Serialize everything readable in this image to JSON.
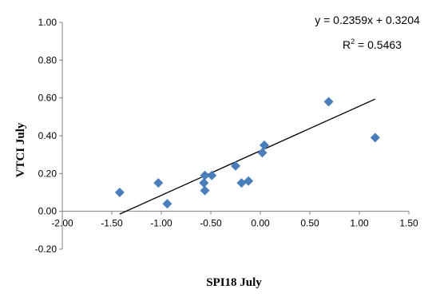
{
  "chart_data": {
    "type": "scatter",
    "title": "",
    "xlabel": "SPI18 July",
    "ylabel": "VTCI July",
    "xlim": [
      -2.0,
      1.5
    ],
    "ylim": [
      -0.2,
      1.0
    ],
    "x_ticks": [
      "-2.00",
      "-1.50",
      "-1.00",
      "-0.50",
      "0.00",
      "0.50",
      "1.00",
      "1.50"
    ],
    "y_ticks": [
      "-0.20",
      "0.00",
      "0.20",
      "0.40",
      "0.60",
      "0.80",
      "1.00"
    ],
    "x_tick_values": [
      -2.0,
      -1.5,
      -1.0,
      -0.5,
      0.0,
      0.5,
      1.0,
      1.5
    ],
    "y_tick_values": [
      -0.2,
      0.0,
      0.2,
      0.4,
      0.6,
      0.8,
      1.0
    ],
    "grid": false,
    "legend": "none",
    "marker": "diamond",
    "marker_color": "#4a7ebb",
    "series": [
      {
        "points": [
          {
            "x": -1.42,
            "y": 0.1
          },
          {
            "x": -1.03,
            "y": 0.15
          },
          {
            "x": -0.94,
            "y": 0.04
          },
          {
            "x": -0.56,
            "y": 0.19
          },
          {
            "x": -0.57,
            "y": 0.15
          },
          {
            "x": -0.56,
            "y": 0.11
          },
          {
            "x": -0.49,
            "y": 0.19
          },
          {
            "x": -0.25,
            "y": 0.24
          },
          {
            "x": -0.19,
            "y": 0.15
          },
          {
            "x": -0.12,
            "y": 0.16
          },
          {
            "x": 0.02,
            "y": 0.31
          },
          {
            "x": 0.04,
            "y": 0.35
          },
          {
            "x": 0.69,
            "y": 0.58
          },
          {
            "x": 1.16,
            "y": 0.39
          }
        ]
      }
    ],
    "trendline": {
      "slope": 0.2359,
      "intercept": 0.3204,
      "x_range": [
        -1.42,
        1.16
      ],
      "color": "#000000"
    },
    "annotations": {
      "equation": "y = 0.2359x + 0.3204",
      "r2_prefix": "R",
      "r2_sup": "2",
      "r2_suffix": " = 0.5463"
    }
  }
}
